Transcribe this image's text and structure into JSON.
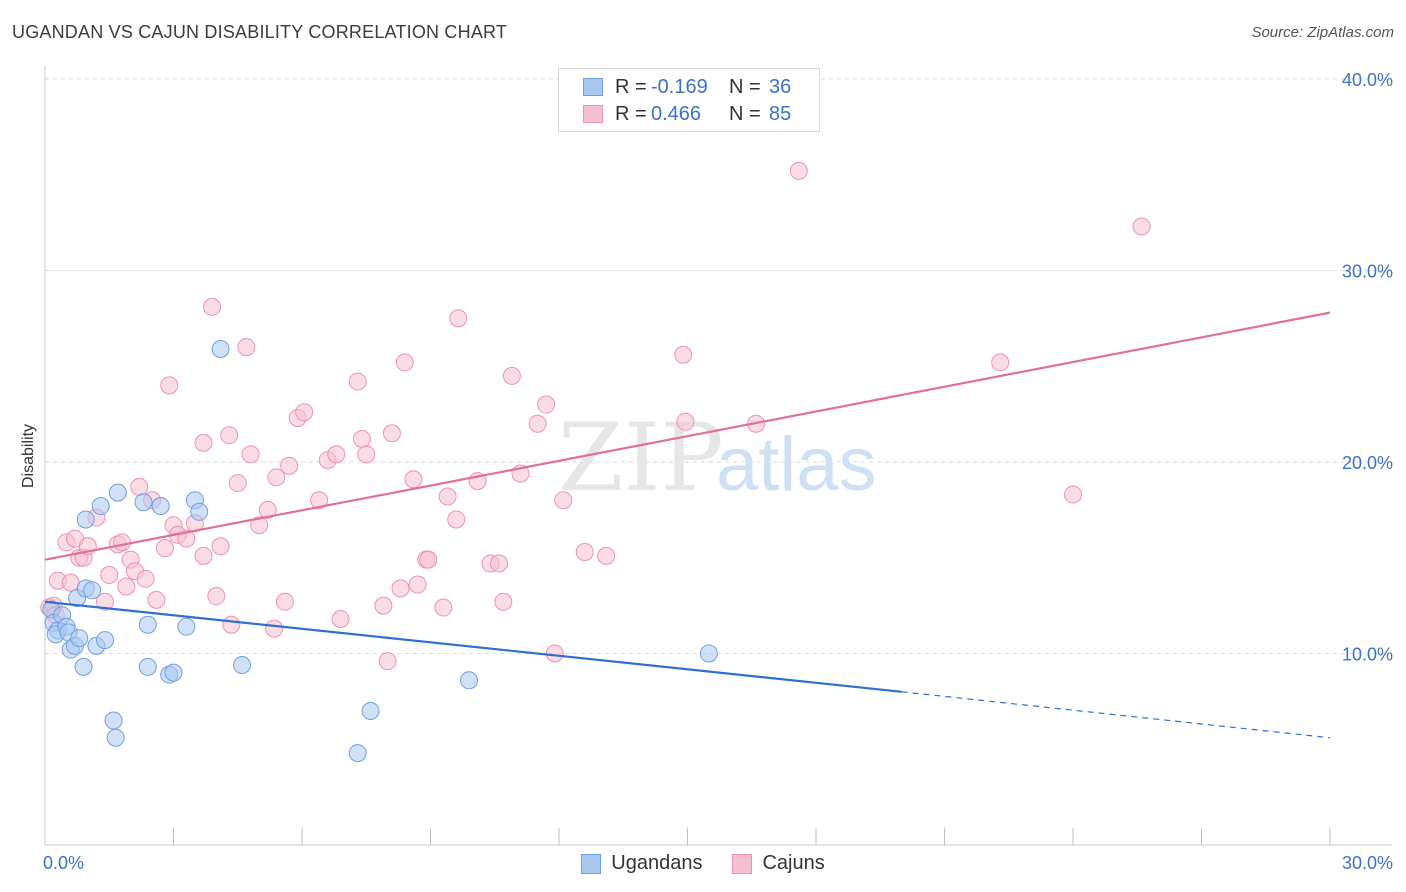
{
  "header": {
    "title": "UGANDAN VS CAJUN DISABILITY CORRELATION CHART",
    "source": "Source: ZipAtlas.com"
  },
  "watermark": {
    "zip": "ZIP",
    "atlas": "atlas"
  },
  "legend": {
    "rows": [
      {
        "r_label": "R =",
        "r_value": "-0.169",
        "n_label": "N =",
        "n_value": "36"
      },
      {
        "r_label": "R =",
        "r_value": "0.466",
        "n_label": "N =",
        "n_value": "85"
      }
    ]
  },
  "bottom_legend": {
    "ugandans": "Ugandans",
    "cajuns": "Cajuns"
  },
  "colors": {
    "ugandans_fill": "#a9c8f0",
    "ugandans_stroke": "#6f9fe0",
    "ugandans_line": "#2f6fd0",
    "cajuns_fill": "#f6bfd0",
    "cajuns_stroke": "#ee93b0",
    "cajuns_line": "#e0709a",
    "grid": "#d9d9d9",
    "tick_text": "#3b72c8"
  },
  "chart_data": {
    "type": "scatter",
    "title": "UGANDAN VS CAJUN DISABILITY CORRELATION CHART",
    "xlabel": "",
    "ylabel": "Disability",
    "xlim": [
      0,
      30
    ],
    "ylim": [
      0,
      40
    ],
    "x_tick_labels": [
      "0.0%",
      "30.0%"
    ],
    "y_ticks": [
      10,
      20,
      30,
      40
    ],
    "y_tick_labels": [
      "10.0%",
      "20.0%",
      "30.0%",
      "40.0%"
    ],
    "grid": true,
    "legend_position": "top-center",
    "series": [
      {
        "name": "Ugandans",
        "r": -0.169,
        "n": 36,
        "trend": {
          "x0": 0,
          "y0": 12.7,
          "x1": 20,
          "y1": 8.0,
          "dashed_to_x": 30,
          "dashed_to_y": 5.6
        },
        "points": [
          [
            0.15,
            12.3
          ],
          [
            0.2,
            11.6
          ],
          [
            0.3,
            11.2
          ],
          [
            0.25,
            11.0
          ],
          [
            0.4,
            12.0
          ],
          [
            0.5,
            11.4
          ],
          [
            0.55,
            11.1
          ],
          [
            0.6,
            10.2
          ],
          [
            0.7,
            10.4
          ],
          [
            0.8,
            10.8
          ],
          [
            0.75,
            12.9
          ],
          [
            0.95,
            13.4
          ],
          [
            1.1,
            13.3
          ],
          [
            1.2,
            10.4
          ],
          [
            1.4,
            10.7
          ],
          [
            0.9,
            9.3
          ],
          [
            0.95,
            17.0
          ],
          [
            1.3,
            17.7
          ],
          [
            1.7,
            18.4
          ],
          [
            2.3,
            17.9
          ],
          [
            2.7,
            17.7
          ],
          [
            3.5,
            18.0
          ],
          [
            3.6,
            17.4
          ],
          [
            2.4,
            11.5
          ],
          [
            3.3,
            11.4
          ],
          [
            2.4,
            9.3
          ],
          [
            2.9,
            8.9
          ],
          [
            3.0,
            9.0
          ],
          [
            4.6,
            9.4
          ],
          [
            4.1,
            25.9
          ],
          [
            1.6,
            6.5
          ],
          [
            1.65,
            5.6
          ],
          [
            7.6,
            7.0
          ],
          [
            7.3,
            4.8
          ],
          [
            9.9,
            8.6
          ],
          [
            15.5,
            10.0
          ]
        ]
      },
      {
        "name": "Cajuns",
        "r": 0.466,
        "n": 85,
        "trend": {
          "x0": 0,
          "y0": 14.9,
          "x1": 30,
          "y1": 27.8
        },
        "points": [
          [
            0.1,
            12.4
          ],
          [
            0.2,
            12.5
          ],
          [
            0.25,
            12.0
          ],
          [
            0.3,
            13.8
          ],
          [
            0.5,
            15.8
          ],
          [
            0.6,
            13.7
          ],
          [
            0.7,
            16.0
          ],
          [
            0.8,
            15.0
          ],
          [
            0.9,
            15.0
          ],
          [
            1.0,
            15.6
          ],
          [
            1.2,
            17.1
          ],
          [
            1.4,
            12.7
          ],
          [
            1.5,
            14.1
          ],
          [
            1.7,
            15.7
          ],
          [
            1.8,
            15.8
          ],
          [
            1.9,
            13.5
          ],
          [
            2.0,
            14.9
          ],
          [
            2.1,
            14.3
          ],
          [
            2.2,
            18.7
          ],
          [
            2.35,
            13.9
          ],
          [
            2.5,
            18.0
          ],
          [
            2.6,
            12.8
          ],
          [
            2.8,
            15.5
          ],
          [
            2.9,
            24.0
          ],
          [
            3.0,
            16.7
          ],
          [
            3.1,
            16.2
          ],
          [
            3.3,
            16.0
          ],
          [
            3.5,
            16.8
          ],
          [
            3.7,
            21.0
          ],
          [
            3.7,
            15.1
          ],
          [
            3.9,
            28.1
          ],
          [
            4.0,
            13.0
          ],
          [
            4.1,
            15.6
          ],
          [
            4.3,
            21.4
          ],
          [
            4.35,
            11.5
          ],
          [
            4.5,
            18.9
          ],
          [
            4.7,
            26.0
          ],
          [
            4.8,
            20.4
          ],
          [
            5.0,
            16.7
          ],
          [
            5.2,
            17.5
          ],
          [
            5.4,
            19.2
          ],
          [
            5.35,
            11.3
          ],
          [
            5.6,
            12.7
          ],
          [
            5.7,
            19.8
          ],
          [
            5.9,
            22.3
          ],
          [
            6.05,
            22.6
          ],
          [
            6.4,
            18.0
          ],
          [
            6.6,
            20.1
          ],
          [
            6.8,
            20.4
          ],
          [
            6.9,
            11.8
          ],
          [
            7.3,
            24.2
          ],
          [
            7.4,
            21.2
          ],
          [
            7.5,
            20.4
          ],
          [
            7.9,
            12.5
          ],
          [
            8.0,
            9.6
          ],
          [
            8.1,
            21.5
          ],
          [
            8.3,
            13.4
          ],
          [
            8.4,
            25.2
          ],
          [
            8.6,
            19.1
          ],
          [
            8.7,
            13.6
          ],
          [
            8.9,
            14.9
          ],
          [
            8.95,
            14.9
          ],
          [
            9.3,
            12.4
          ],
          [
            9.4,
            18.2
          ],
          [
            9.6,
            17.0
          ],
          [
            9.65,
            27.5
          ],
          [
            10.1,
            19.0
          ],
          [
            10.4,
            14.7
          ],
          [
            10.6,
            14.7
          ],
          [
            10.7,
            12.7
          ],
          [
            10.9,
            24.5
          ],
          [
            11.1,
            19.4
          ],
          [
            11.5,
            22.0
          ],
          [
            11.7,
            23.0
          ],
          [
            11.9,
            10.0
          ],
          [
            12.1,
            18.0
          ],
          [
            12.6,
            15.3
          ],
          [
            13.1,
            15.1
          ],
          [
            14.9,
            25.6
          ],
          [
            14.95,
            22.1
          ],
          [
            16.6,
            22.0
          ],
          [
            17.6,
            35.2
          ],
          [
            22.3,
            25.2
          ],
          [
            24.0,
            18.3
          ],
          [
            25.6,
            32.3
          ]
        ]
      }
    ]
  }
}
